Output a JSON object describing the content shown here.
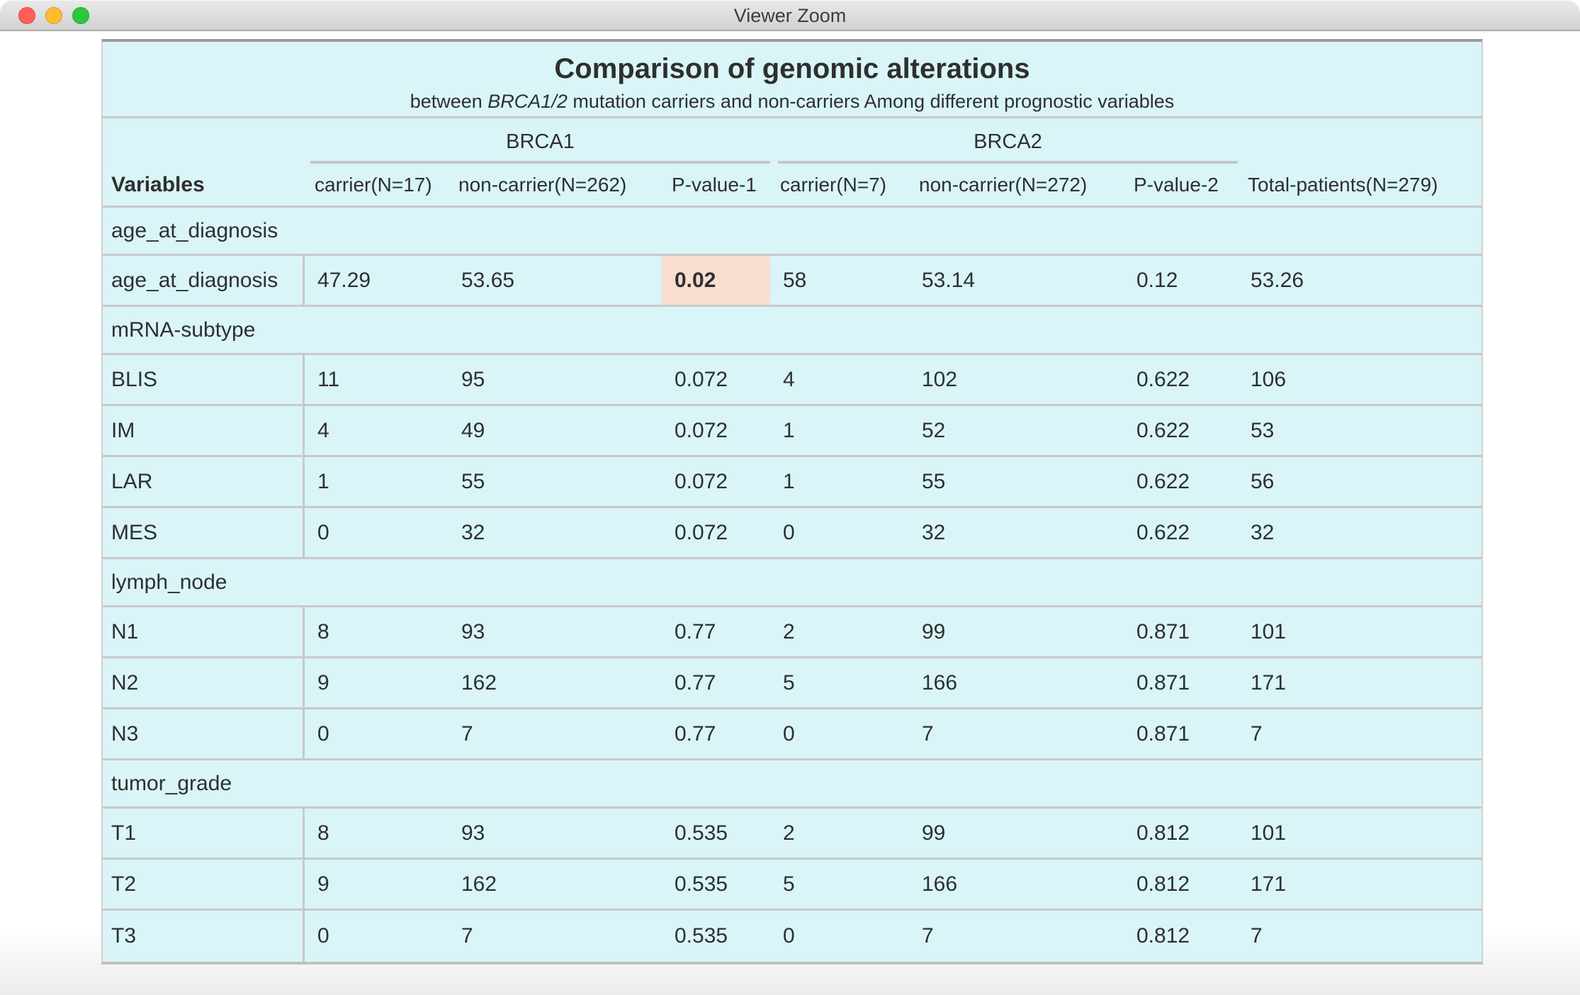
{
  "window": {
    "title": "Viewer Zoom"
  },
  "table": {
    "title": "Comparison of genomic alterations",
    "subtitle_prefix": "between ",
    "subtitle_italic": "BRCA1/2",
    "subtitle_suffix": " mutation carriers and non-carriers Among different prognostic variables",
    "group_headers": [
      "BRCA1",
      "BRCA2"
    ],
    "columns": [
      "Variables",
      "carrier(N=17)",
      "non-carrier(N=262)",
      "P-value-1",
      "carrier(N=7)",
      "non-carrier(N=272)",
      "P-value-2",
      "Total-patients(N=279)"
    ],
    "sections": [
      {
        "name": "age_at_diagnosis",
        "rows": [
          {
            "cells": [
              "age_at_diagnosis",
              "47.29",
              "53.65",
              "0.02",
              "58",
              "53.14",
              "0.12",
              "53.26"
            ],
            "highlight_col": 3
          }
        ]
      },
      {
        "name": "mRNA-subtype",
        "rows": [
          {
            "cells": [
              "BLIS",
              "11",
              "95",
              "0.072",
              "4",
              "102",
              "0.622",
              "106"
            ]
          },
          {
            "cells": [
              "IM",
              "4",
              "49",
              "0.072",
              "1",
              "52",
              "0.622",
              "53"
            ]
          },
          {
            "cells": [
              "LAR",
              "1",
              "55",
              "0.072",
              "1",
              "55",
              "0.622",
              "56"
            ]
          },
          {
            "cells": [
              "MES",
              "0",
              "32",
              "0.072",
              "0",
              "32",
              "0.622",
              "32"
            ]
          }
        ]
      },
      {
        "name": "lymph_node",
        "rows": [
          {
            "cells": [
              "N1",
              "8",
              "93",
              "0.77",
              "2",
              "99",
              "0.871",
              "101"
            ]
          },
          {
            "cells": [
              "N2",
              "9",
              "162",
              "0.77",
              "5",
              "166",
              "0.871",
              "171"
            ]
          },
          {
            "cells": [
              "N3",
              "0",
              "7",
              "0.77",
              "0",
              "7",
              "0.871",
              "7"
            ]
          }
        ]
      },
      {
        "name": "tumor_grade",
        "rows": [
          {
            "cells": [
              "T1",
              "8",
              "93",
              "0.535",
              "2",
              "99",
              "0.812",
              "101"
            ]
          },
          {
            "cells": [
              "T2",
              "9",
              "162",
              "0.535",
              "5",
              "166",
              "0.812",
              "171"
            ]
          },
          {
            "cells": [
              "T3",
              "0",
              "7",
              "0.535",
              "0",
              "7",
              "0.812",
              "7"
            ]
          }
        ]
      }
    ],
    "colors": {
      "table_bg": "#d9f5f8",
      "highlight_bg": "#f8ded1",
      "row_border": "#c9c9c9",
      "text": "#2f2f2f"
    }
  }
}
